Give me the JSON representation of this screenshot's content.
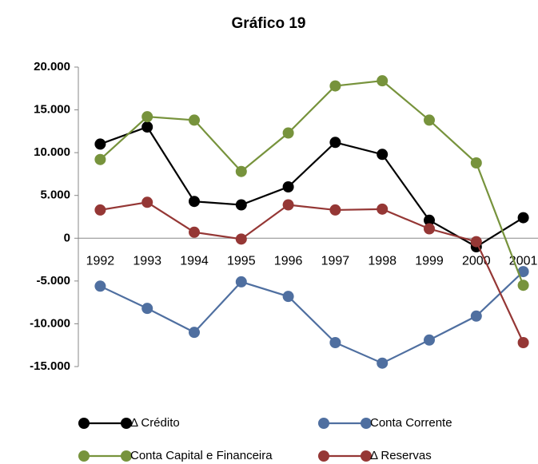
{
  "chart_data": {
    "type": "line",
    "title": "Gráfico 19",
    "categories": [
      "1992",
      "1993",
      "1994",
      "1995",
      "1996",
      "1997",
      "1998",
      "1999",
      "2000",
      "2001"
    ],
    "series": [
      {
        "name": "Δ Crédito",
        "color": "#000000",
        "values": [
          11000,
          13000,
          4300,
          3900,
          6000,
          11200,
          9800,
          2100,
          -1000,
          2400
        ]
      },
      {
        "name": "Conta Corrente",
        "color": "#4f6fa0",
        "values": [
          -5600,
          -8200,
          -11000,
          -5100,
          -6800,
          -12200,
          -14600,
          -11900,
          -9100,
          -3900
        ]
      },
      {
        "name": "Conta Capital e Financeira",
        "color": "#77933c",
        "values": [
          9200,
          14200,
          13800,
          7800,
          12300,
          17800,
          18400,
          13800,
          8800,
          -5500
        ]
      },
      {
        "name": "Δ Reservas",
        "color": "#953735",
        "values": [
          3300,
          4200,
          700,
          -100,
          3900,
          3300,
          3400,
          1100,
          -400,
          -12200
        ]
      }
    ],
    "ylim": [
      -15000,
      20000
    ],
    "yticks": [
      {
        "value": -15000,
        "label": "-15.000"
      },
      {
        "value": -10000,
        "label": "-10.000"
      },
      {
        "value": -5000,
        "label": "-5.000"
      },
      0,
      {
        "value": 5000,
        "label": "5.000"
      },
      {
        "value": 10000,
        "label": "10.000"
      },
      {
        "value": 15000,
        "label": "15.000"
      },
      {
        "value": 20000,
        "label": "20.000"
      }
    ],
    "grid": false,
    "legend": "bottom"
  }
}
